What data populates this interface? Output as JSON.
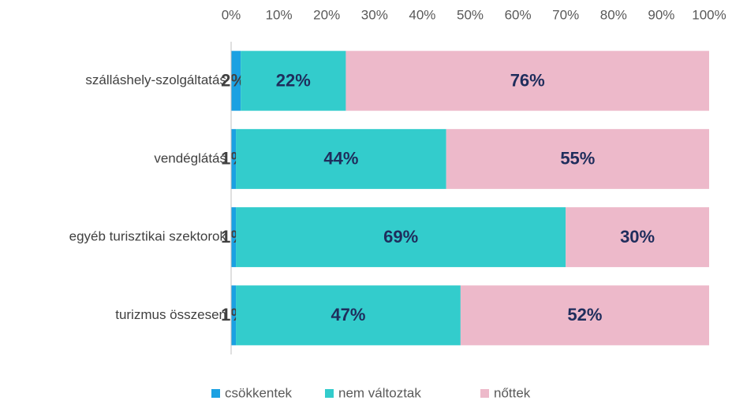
{
  "chart_data": {
    "type": "stacked-bar-horizontal",
    "categories": [
      "szálláshely-szolgáltatás",
      "vendéglátás",
      "egyéb turisztikai szektorok",
      "turizmus összesen"
    ],
    "series": [
      {
        "name": "csökkentek",
        "color": "#1ba1e2",
        "values": [
          2,
          1,
          1,
          1
        ],
        "value_labels": [
          "2%",
          "1%",
          "1%",
          "1%"
        ]
      },
      {
        "name": "nem változtak",
        "color": "#33cccc",
        "values": [
          22,
          44,
          69,
          47
        ],
        "value_labels": [
          "22%",
          "44%",
          "69%",
          "47%"
        ]
      },
      {
        "name": "nőttek",
        "color": "#edb9ca",
        "values": [
          76,
          55,
          30,
          52
        ],
        "value_labels": [
          "76%",
          "55%",
          "30%",
          "52%"
        ]
      }
    ],
    "xlim": [
      0,
      100
    ],
    "xticks": [
      {
        "value": 0,
        "label": "0%"
      },
      {
        "value": 10,
        "label": "10%"
      },
      {
        "value": 20,
        "label": "20%"
      },
      {
        "value": 30,
        "label": "30%"
      },
      {
        "value": 40,
        "label": "40%"
      },
      {
        "value": 50,
        "label": "50%"
      },
      {
        "value": 60,
        "label": "60%"
      },
      {
        "value": 70,
        "label": "70%"
      },
      {
        "value": 80,
        "label": "80%"
      },
      {
        "value": 90,
        "label": "90%"
      },
      {
        "value": 100,
        "label": "100%"
      }
    ],
    "legend": "bottom"
  }
}
